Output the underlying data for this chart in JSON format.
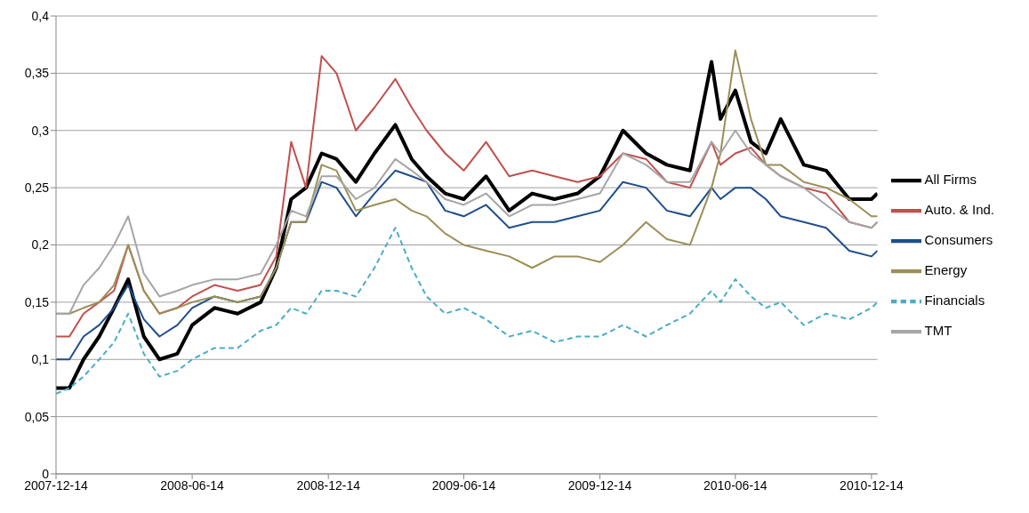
{
  "chart_data": {
    "type": "line",
    "x": [
      "2007-12-14",
      "2008-01-01",
      "2008-01-20",
      "2008-02-10",
      "2008-03-01",
      "2008-03-20",
      "2008-04-10",
      "2008-05-01",
      "2008-05-25",
      "2008-06-14",
      "2008-07-14",
      "2008-08-14",
      "2008-09-14",
      "2008-10-05",
      "2008-10-25",
      "2008-11-14",
      "2008-12-05",
      "2008-12-25",
      "2009-01-20",
      "2009-02-14",
      "2009-03-14",
      "2009-04-05",
      "2009-04-25",
      "2009-05-20",
      "2009-06-14",
      "2009-07-14",
      "2009-08-14",
      "2009-09-14",
      "2009-10-14",
      "2009-11-14",
      "2009-12-14",
      "2010-01-14",
      "2010-02-14",
      "2010-03-14",
      "2010-04-14",
      "2010-05-13",
      "2010-05-25",
      "2010-06-14",
      "2010-07-05",
      "2010-07-25",
      "2010-08-14",
      "2010-09-14",
      "2010-10-14",
      "2010-11-14",
      "2010-12-14",
      "2010-12-22"
    ],
    "series": [
      {
        "name": "All Firms",
        "color": "#000000",
        "values": [
          0.075,
          0.075,
          0.1,
          0.12,
          0.145,
          0.17,
          0.12,
          0.1,
          0.105,
          0.13,
          0.145,
          0.14,
          0.15,
          0.18,
          0.24,
          0.25,
          0.28,
          0.275,
          0.255,
          0.28,
          0.305,
          0.275,
          0.26,
          0.245,
          0.24,
          0.26,
          0.23,
          0.245,
          0.24,
          0.245,
          0.26,
          0.3,
          0.28,
          0.27,
          0.265,
          0.36,
          0.31,
          0.335,
          0.29,
          0.28,
          0.31,
          0.27,
          0.265,
          0.24,
          0.24,
          0.245
        ]
      },
      {
        "name": "Auto. & Ind.",
        "color": "#c0504d",
        "values": [
          0.12,
          0.12,
          0.14,
          0.15,
          0.16,
          0.2,
          0.16,
          0.14,
          0.145,
          0.155,
          0.165,
          0.16,
          0.165,
          0.19,
          0.29,
          0.25,
          0.365,
          0.35,
          0.3,
          0.32,
          0.345,
          0.32,
          0.3,
          0.28,
          0.265,
          0.29,
          0.26,
          0.265,
          0.26,
          0.255,
          0.26,
          0.28,
          0.275,
          0.255,
          0.25,
          0.29,
          0.27,
          0.28,
          0.285,
          0.27,
          0.26,
          0.25,
          0.245,
          0.22,
          0.215,
          0.22
        ]
      },
      {
        "name": "Consumers",
        "color": "#1f4e8c",
        "values": [
          0.1,
          0.1,
          0.12,
          0.13,
          0.145,
          0.165,
          0.135,
          0.12,
          0.13,
          0.145,
          0.155,
          0.15,
          0.155,
          0.18,
          0.22,
          0.22,
          0.255,
          0.25,
          0.225,
          0.245,
          0.265,
          0.26,
          0.255,
          0.23,
          0.225,
          0.235,
          0.215,
          0.22,
          0.22,
          0.225,
          0.23,
          0.255,
          0.25,
          0.23,
          0.225,
          0.25,
          0.24,
          0.25,
          0.25,
          0.24,
          0.225,
          0.22,
          0.215,
          0.195,
          0.19,
          0.195
        ]
      },
      {
        "name": "Energy",
        "color": "#9b8f57",
        "values": [
          0.14,
          0.14,
          0.145,
          0.15,
          0.165,
          0.2,
          0.16,
          0.14,
          0.145,
          0.15,
          0.155,
          0.15,
          0.155,
          0.18,
          0.22,
          0.22,
          0.27,
          0.265,
          0.23,
          0.235,
          0.24,
          0.23,
          0.225,
          0.21,
          0.2,
          0.195,
          0.19,
          0.18,
          0.19,
          0.19,
          0.185,
          0.2,
          0.22,
          0.205,
          0.2,
          0.25,
          0.28,
          0.37,
          0.31,
          0.27,
          0.27,
          0.255,
          0.25,
          0.24,
          0.225,
          0.225
        ]
      },
      {
        "name": "Financials",
        "color": "#4bacc6",
        "line_style": "dashed",
        "values": [
          0.07,
          0.075,
          0.085,
          0.1,
          0.115,
          0.14,
          0.105,
          0.085,
          0.09,
          0.1,
          0.11,
          0.11,
          0.125,
          0.13,
          0.145,
          0.14,
          0.16,
          0.16,
          0.155,
          0.18,
          0.215,
          0.18,
          0.155,
          0.14,
          0.145,
          0.135,
          0.12,
          0.125,
          0.115,
          0.12,
          0.12,
          0.13,
          0.12,
          0.13,
          0.14,
          0.16,
          0.15,
          0.17,
          0.155,
          0.145,
          0.15,
          0.13,
          0.14,
          0.135,
          0.145,
          0.15
        ]
      },
      {
        "name": "TMT",
        "color": "#a6a6a6",
        "values": [
          0.14,
          0.14,
          0.165,
          0.18,
          0.2,
          0.225,
          0.175,
          0.155,
          0.16,
          0.165,
          0.17,
          0.17,
          0.175,
          0.2,
          0.23,
          0.225,
          0.26,
          0.26,
          0.24,
          0.25,
          0.275,
          0.265,
          0.255,
          0.24,
          0.235,
          0.245,
          0.225,
          0.235,
          0.235,
          0.24,
          0.245,
          0.28,
          0.27,
          0.255,
          0.255,
          0.29,
          0.28,
          0.3,
          0.28,
          0.27,
          0.26,
          0.25,
          0.235,
          0.22,
          0.215,
          0.22
        ]
      }
    ],
    "xlim": [
      "2007-12-14",
      "2010-12-22"
    ],
    "xticks": [
      "2007-12-14",
      "2008-06-14",
      "2008-12-14",
      "2009-06-14",
      "2009-12-14",
      "2010-06-14",
      "2010-12-14"
    ],
    "ylim": [
      0,
      0.4
    ],
    "yticks": [
      {
        "value": 0,
        "label": "0"
      },
      {
        "value": 0.05,
        "label": "0,05"
      },
      {
        "value": 0.1,
        "label": "0,1"
      },
      {
        "value": 0.15,
        "label": "0,15"
      },
      {
        "value": 0.2,
        "label": "0,2"
      },
      {
        "value": 0.25,
        "label": "0,25"
      },
      {
        "value": 0.3,
        "label": "0,3"
      },
      {
        "value": 0.35,
        "label": "0,35"
      },
      {
        "value": 0.4,
        "label": "0,4"
      }
    ],
    "grid": "y",
    "legend": "right",
    "marker": "none",
    "line_style": "solid"
  }
}
